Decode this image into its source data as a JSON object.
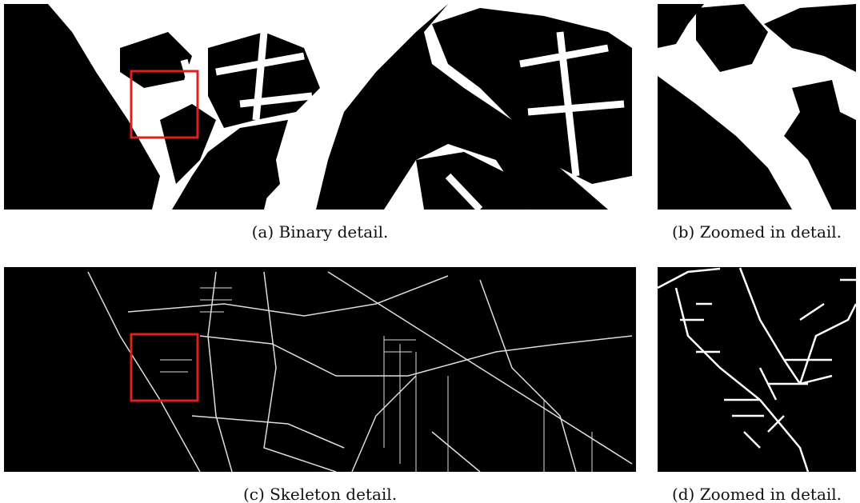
{
  "figure": {
    "panels": [
      {
        "caption": "(a) Binary detail."
      },
      {
        "caption": "(b) Zoomed in detail."
      },
      {
        "caption": "(c) Skeleton detail."
      },
      {
        "caption": "(d) Zoomed in detail."
      }
    ]
  }
}
